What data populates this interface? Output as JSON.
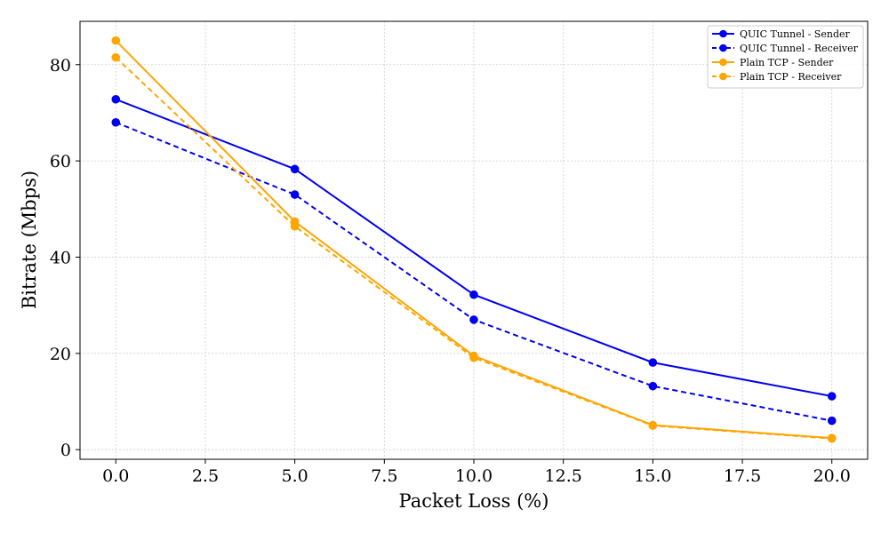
{
  "chart_data": {
    "type": "line",
    "title": "",
    "xlabel": "Packet Loss (%)",
    "ylabel": "Bitrate (Mbps)",
    "x": [
      0,
      5,
      10,
      15,
      20
    ],
    "xlim": [
      -1,
      21
    ],
    "ylim": [
      -2,
      89
    ],
    "xticks": [
      0,
      2.5,
      5,
      7.5,
      10,
      12.5,
      15,
      17.5,
      20
    ],
    "xtick_labels": [
      "0.0",
      "2.5",
      "5.0",
      "7.5",
      "10.0",
      "12.5",
      "15.0",
      "17.5",
      "20.0"
    ],
    "yticks": [
      0,
      20,
      40,
      60,
      80
    ],
    "ytick_labels": [
      "0",
      "20",
      "40",
      "60",
      "80"
    ],
    "grid": true,
    "legend_position": "top-right",
    "series": [
      {
        "name": "QUIC Tunnel - Sender",
        "values": [
          72.8,
          58.3,
          32.2,
          18.1,
          11.1
        ],
        "color": "#0000ee",
        "dash": "solid"
      },
      {
        "name": "QUIC Tunnel - Receiver",
        "values": [
          68.0,
          53.0,
          27.0,
          13.2,
          6.0
        ],
        "color": "#0000ee",
        "dash": "dashed"
      },
      {
        "name": "Plain TCP - Sender",
        "values": [
          85.0,
          47.4,
          19.5,
          5.1,
          2.4
        ],
        "color": "#ffa500",
        "dash": "solid"
      },
      {
        "name": "Plain TCP - Receiver",
        "values": [
          81.5,
          46.4,
          19.1,
          5.0,
          2.3
        ],
        "color": "#ffa500",
        "dash": "dashed"
      }
    ]
  }
}
